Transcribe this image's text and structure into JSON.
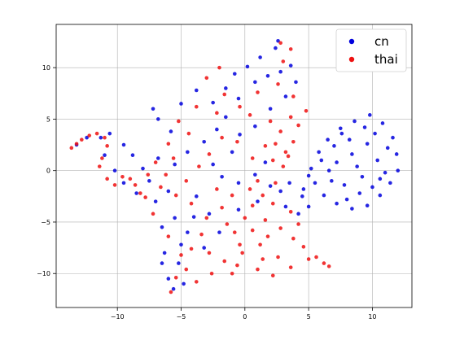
{
  "chart_data": {
    "type": "scatter",
    "title": "",
    "xlabel": "",
    "ylabel": "",
    "xlim": [
      -14.8,
      13.1
    ],
    "ylim": [
      -13.3,
      14.2
    ],
    "xticks": [
      -10,
      -5,
      0,
      5,
      10
    ],
    "yticks": [
      -10,
      -5,
      0,
      5,
      10
    ],
    "xtick_labels": [
      "−10",
      "−5",
      "0",
      "5",
      "10"
    ],
    "ytick_labels": [
      "−10",
      "−5",
      "0",
      "5",
      "10"
    ],
    "grid": true,
    "legend_position": "top-right",
    "series": [
      {
        "name": "cn",
        "color": "#0000dd",
        "points": [
          [
            -6.0,
            -10.5
          ],
          [
            -5.6,
            -11.5
          ],
          [
            -5.2,
            -9.0
          ],
          [
            -6.3,
            -8.0
          ],
          [
            -5.0,
            -7.2
          ],
          [
            -4.5,
            -6.0
          ],
          [
            -6.5,
            -5.5
          ],
          [
            -5.5,
            -4.6
          ],
          [
            -4.0,
            -4.5
          ],
          [
            -3.8,
            -2.5
          ],
          [
            -6.0,
            -2.0
          ],
          [
            -7.0,
            -3.0
          ],
          [
            -7.5,
            -1.0
          ],
          [
            -8.0,
            0.2
          ],
          [
            -6.8,
            1.2
          ],
          [
            -5.5,
            0.6
          ],
          [
            -4.5,
            1.8
          ],
          [
            -3.2,
            2.8
          ],
          [
            -5.8,
            3.8
          ],
          [
            -6.8,
            5.0
          ],
          [
            -7.2,
            6.0
          ],
          [
            -5.0,
            6.5
          ],
          [
            -3.8,
            7.8
          ],
          [
            -2.5,
            6.6
          ],
          [
            -1.5,
            8.0
          ],
          [
            -0.8,
            9.4
          ],
          [
            0.2,
            10.1
          ],
          [
            1.2,
            11.0
          ],
          [
            2.4,
            11.9
          ],
          [
            2.6,
            12.6
          ],
          [
            1.8,
            9.2
          ],
          [
            0.8,
            8.6
          ],
          [
            -0.5,
            7.0
          ],
          [
            -1.5,
            5.2
          ],
          [
            -2.2,
            4.0
          ],
          [
            -0.4,
            3.5
          ],
          [
            0.8,
            4.3
          ],
          [
            2.0,
            6.0
          ],
          [
            3.2,
            7.2
          ],
          [
            4.0,
            8.6
          ],
          [
            3.6,
            10.2
          ],
          [
            2.8,
            9.6
          ],
          [
            -1.0,
            1.8
          ],
          [
            -2.5,
            0.6
          ],
          [
            -1.8,
            -0.6
          ],
          [
            -0.5,
            -1.2
          ],
          [
            0.8,
            -0.4
          ],
          [
            1.6,
            0.8
          ],
          [
            2.0,
            -1.5
          ],
          [
            2.8,
            -2.0
          ],
          [
            3.5,
            -1.2
          ],
          [
            4.5,
            -2.5
          ],
          [
            5.0,
            -3.5
          ],
          [
            4.2,
            -4.2
          ],
          [
            3.2,
            -3.5
          ],
          [
            1.0,
            -3.0
          ],
          [
            -0.5,
            -3.8
          ],
          [
            -2.8,
            -4.2
          ],
          [
            -2.0,
            -6.0
          ],
          [
            -3.2,
            -7.5
          ],
          [
            -10.6,
            3.6
          ],
          [
            -11.3,
            3.2
          ],
          [
            -9.5,
            2.5
          ],
          [
            -8.8,
            1.5
          ],
          [
            -10.2,
            0.0
          ],
          [
            -9.5,
            -1.2
          ],
          [
            -8.5,
            -2.2
          ],
          [
            -11.0,
            1.5
          ],
          [
            -12.4,
            3.2
          ],
          [
            -13.2,
            2.5
          ],
          [
            -6.5,
            -9.0
          ],
          [
            -4.8,
            -11.0
          ],
          [
            5.2,
            0.2
          ],
          [
            5.8,
            1.8
          ],
          [
            6.5,
            3.0
          ],
          [
            7.5,
            4.1
          ],
          [
            8.6,
            4.8
          ],
          [
            9.8,
            5.4
          ],
          [
            10.8,
            4.6
          ],
          [
            11.6,
            3.2
          ],
          [
            11.9,
            1.6
          ],
          [
            12.0,
            0.0
          ],
          [
            11.4,
            -1.2
          ],
          [
            10.6,
            -2.4
          ],
          [
            9.6,
            -3.4
          ],
          [
            8.4,
            -3.7
          ],
          [
            7.2,
            -3.2
          ],
          [
            6.2,
            -2.4
          ],
          [
            5.5,
            -1.2
          ],
          [
            5.0,
            -0.5
          ],
          [
            7.2,
            0.8
          ],
          [
            8.4,
            1.6
          ],
          [
            9.6,
            2.6
          ],
          [
            10.4,
            1.0
          ],
          [
            9.2,
            -0.6
          ],
          [
            7.8,
            -1.4
          ],
          [
            6.6,
            0.0
          ],
          [
            8.2,
            3.0
          ],
          [
            10.2,
            3.6
          ],
          [
            11.0,
            -0.2
          ],
          [
            9.0,
            -2.2
          ],
          [
            6.0,
            1.0
          ],
          [
            7.0,
            2.4
          ],
          [
            8.8,
            0.4
          ],
          [
            10.0,
            -1.6
          ],
          [
            11.2,
            2.2
          ],
          [
            8.0,
            -2.8
          ],
          [
            6.8,
            -1.0
          ],
          [
            9.4,
            4.2
          ],
          [
            10.6,
            -0.8
          ],
          [
            7.6,
            3.6
          ],
          [
            4.6,
            -1.8
          ]
        ]
      },
      {
        "name": "thai",
        "color": "#ee1111",
        "points": [
          [
            -13.6,
            2.2
          ],
          [
            -13.2,
            2.6
          ],
          [
            -12.8,
            3.0
          ],
          [
            -12.2,
            3.4
          ],
          [
            -11.6,
            3.6
          ],
          [
            -11.0,
            3.2
          ],
          [
            -10.8,
            2.4
          ],
          [
            -11.2,
            1.2
          ],
          [
            -11.4,
            0.4
          ],
          [
            -10.8,
            -0.8
          ],
          [
            -9.6,
            -0.6
          ],
          [
            -8.6,
            -1.4
          ],
          [
            -7.6,
            -0.4
          ],
          [
            -6.6,
            -1.6
          ],
          [
            -5.4,
            -2.4
          ],
          [
            -4.2,
            -3.2
          ],
          [
            -7.2,
            -4.2
          ],
          [
            -6.0,
            -6.4
          ],
          [
            -5.0,
            -8.2
          ],
          [
            -4.6,
            -9.6
          ],
          [
            -5.8,
            -11.8
          ],
          [
            -3.8,
            -10.8
          ],
          [
            -2.6,
            -10.0
          ],
          [
            -1.6,
            -8.8
          ],
          [
            -0.2,
            -8.0
          ],
          [
            1.2,
            -7.2
          ],
          [
            0.6,
            -5.8
          ],
          [
            -0.8,
            -6.0
          ],
          [
            0.0,
            -4.6
          ],
          [
            1.6,
            -4.8
          ],
          [
            2.8,
            -5.6
          ],
          [
            3.8,
            -6.6
          ],
          [
            2.6,
            -8.4
          ],
          [
            3.6,
            -9.4
          ],
          [
            5.0,
            -8.6
          ],
          [
            6.2,
            -9.0
          ],
          [
            6.6,
            -9.3
          ],
          [
            2.2,
            -10.2
          ],
          [
            1.0,
            -9.6
          ],
          [
            -1.0,
            -10.0
          ],
          [
            2.2,
            1.0
          ],
          [
            3.2,
            1.8
          ],
          [
            3.8,
            2.8
          ],
          [
            2.8,
            3.8
          ],
          [
            1.6,
            2.4
          ],
          [
            0.6,
            1.2
          ],
          [
            -0.6,
            2.8
          ],
          [
            -1.8,
            3.2
          ],
          [
            -2.8,
            1.6
          ],
          [
            -3.6,
            0.4
          ],
          [
            -4.6,
            -1.0
          ],
          [
            -2.2,
            -1.8
          ],
          [
            -1.0,
            -2.4
          ],
          [
            0.4,
            -1.8
          ],
          [
            1.4,
            -2.4
          ],
          [
            3.0,
            0.4
          ],
          [
            4.2,
            4.4
          ],
          [
            4.8,
            5.8
          ],
          [
            3.8,
            7.2
          ],
          [
            2.6,
            8.4
          ],
          [
            1.0,
            7.6
          ],
          [
            -0.4,
            6.2
          ],
          [
            -1.6,
            7.4
          ],
          [
            -3.0,
            9.0
          ],
          [
            -3.8,
            6.2
          ],
          [
            -5.2,
            4.8
          ],
          [
            -6.0,
            2.6
          ],
          [
            -7.0,
            0.8
          ],
          [
            -8.2,
            -2.2
          ],
          [
            3.0,
            10.6
          ],
          [
            3.6,
            11.8
          ],
          [
            2.8,
            12.4
          ],
          [
            2.2,
            -3.2
          ],
          [
            3.6,
            -4.0
          ],
          [
            4.2,
            -5.2
          ],
          [
            1.8,
            -6.4
          ],
          [
            -0.4,
            -7.2
          ],
          [
            -2.8,
            -8.0
          ],
          [
            -3.4,
            -6.2
          ],
          [
            -1.4,
            -5.2
          ],
          [
            0.6,
            -3.4
          ],
          [
            2.4,
            -1.2
          ],
          [
            3.4,
            1.4
          ],
          [
            2.0,
            4.8
          ],
          [
            0.4,
            5.4
          ],
          [
            -2.2,
            5.6
          ],
          [
            -4.4,
            3.6
          ],
          [
            -5.6,
            1.2
          ],
          [
            -6.2,
            -0.4
          ],
          [
            -7.8,
            -2.6
          ],
          [
            -9.0,
            -0.8
          ],
          [
            -10.2,
            -1.4
          ],
          [
            4.6,
            -7.4
          ],
          [
            5.6,
            -8.4
          ],
          [
            1.4,
            -8.6
          ],
          [
            -0.6,
            -9.2
          ],
          [
            -5.4,
            -10.4
          ],
          [
            -4.2,
            -7.6
          ],
          [
            -3.0,
            -4.6
          ],
          [
            -1.8,
            -3.6
          ],
          [
            1.0,
            -1.0
          ],
          [
            2.4,
            2.6
          ],
          [
            3.6,
            5.2
          ],
          [
            -2.0,
            10.0
          ]
        ]
      }
    ]
  }
}
